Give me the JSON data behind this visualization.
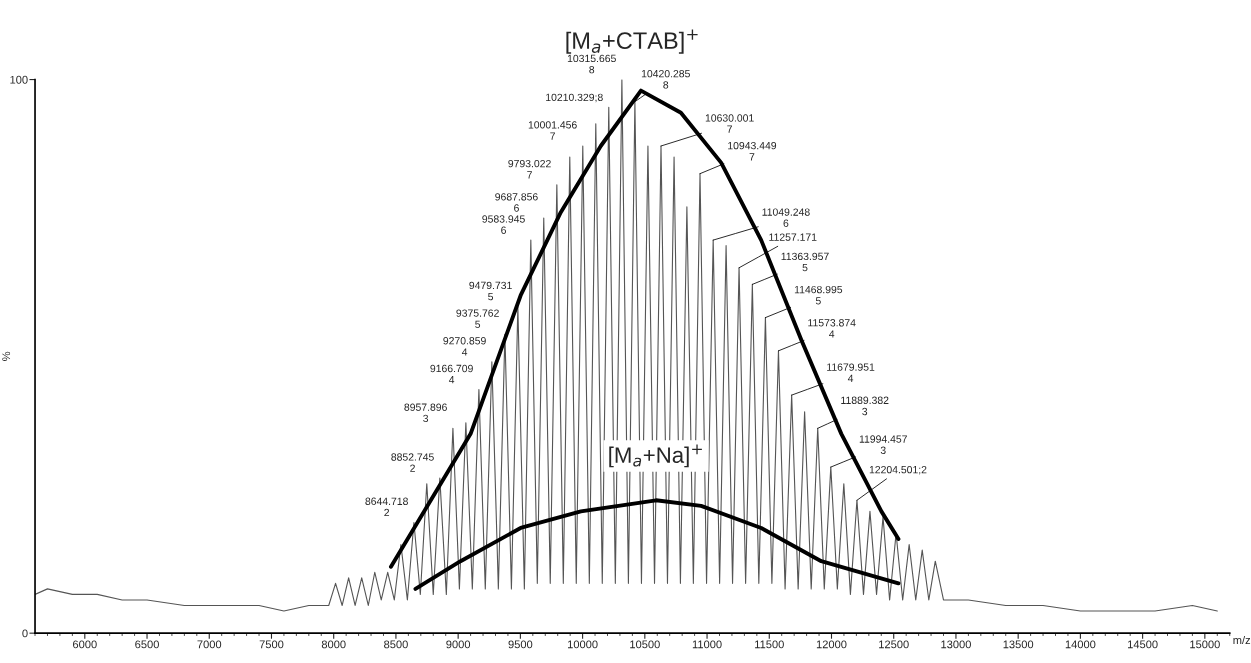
{
  "chart_data": {
    "type": "line",
    "title": "[M$_{a}$+CTAB]$^{+}$",
    "xlabel": "m/z",
    "ylabel": "%",
    "xlim": [
      5600,
      15200
    ],
    "xticks": [
      6000,
      6500,
      7000,
      7500,
      8000,
      8500,
      9000,
      9500,
      10000,
      10500,
      11000,
      11500,
      12000,
      12500,
      13000,
      13500,
      14000,
      14500,
      15000
    ],
    "ylim": [
      0,
      100
    ],
    "yticks": [
      0,
      100
    ],
    "grid": false,
    "marker": "none",
    "line_style": "solid",
    "series": [
      {
        "color": "#555555",
        "x": [
          5600,
          5700,
          5900,
          6100,
          6300,
          6500,
          6800,
          7100,
          7400,
          7600,
          7800,
          7960,
          8015,
          8068,
          8120,
          8172,
          8225,
          8278,
          8330,
          8382,
          8434,
          8487,
          8540,
          8592,
          8644.718,
          8696,
          8748,
          8800,
          8852.745,
          8905,
          8957.896,
          9010,
          9062,
          9114,
          9166.709,
          9218,
          9270.859,
          9323,
          9375.762,
          9428,
          9479.731,
          9532,
          9583.945,
          9636,
          9687.856,
          9740,
          9793.022,
          9845,
          9897,
          9949,
          10001.456,
          10054,
          10106,
          10158,
          10210.329,
          10263,
          10315.665,
          10368,
          10420.285,
          10473,
          10525,
          10578,
          10630.001,
          10682,
          10735,
          10786,
          10838,
          10890,
          10943.449,
          10996,
          11049.248,
          11101,
          11153,
          11205,
          11257.171,
          11310,
          11363.957,
          11416,
          11468.995,
          11521,
          11573.874,
          11627,
          11679.951,
          11732,
          11784,
          11837,
          11889.382,
          11942,
          11994.457,
          12047,
          12099,
          12152,
          12204.501,
          12257,
          12309,
          12362,
          12414,
          12467,
          12519,
          12572,
          12624,
          12677,
          12729,
          12782,
          12834,
          12900,
          13100,
          13400,
          13700,
          14000,
          14300,
          14600,
          14900,
          15100
        ],
        "values": [
          7,
          8,
          7,
          7,
          6,
          6,
          5,
          5,
          5,
          4,
          5,
          5,
          9,
          5,
          10,
          5,
          10,
          5,
          11,
          6,
          11,
          6,
          16,
          6,
          20,
          7,
          27,
          7,
          28,
          7,
          37,
          8,
          38,
          8,
          44,
          8,
          49,
          8,
          54,
          8,
          59,
          8,
          71,
          9,
          75,
          9,
          81,
          9,
          86,
          9,
          88,
          9,
          92,
          9,
          95,
          9,
          100,
          9,
          96,
          9,
          88,
          9,
          88,
          9,
          86,
          9,
          77,
          9,
          83,
          9,
          71,
          9,
          70,
          9,
          66,
          9,
          63,
          9,
          57,
          9,
          51,
          8,
          43,
          8,
          40,
          8,
          37,
          8,
          30,
          8,
          27,
          7,
          24,
          7,
          22,
          7,
          21,
          6,
          18,
          6,
          16,
          6,
          15,
          6,
          13,
          6,
          6,
          5,
          5,
          4,
          4,
          4,
          5,
          4
        ]
      },
      {
        "color": "#000000",
        "x": [
          8460,
          9100,
          9502,
          9824,
          10146,
          10469,
          10790,
          11113,
          11435,
          11757,
          12079,
          12401,
          12538
        ],
        "values": [
          12,
          36,
          61,
          76,
          88,
          98,
          94,
          85,
          71,
          53,
          36,
          22,
          17
        ]
      },
      {
        "color": "#000000",
        "x": [
          8657,
          9019,
          9502,
          9986,
          10590,
          10952,
          11435,
          11918,
          12538
        ],
        "values": [
          8,
          13,
          19,
          22,
          24,
          23,
          19,
          13,
          9
        ]
      }
    ],
    "annotations": [
      {
        "text": "[M$_{a}$+Na]$^{+}$",
        "x": 10590,
        "y": 32
      },
      {
        "text": "8644.718\n2",
        "x": 8644.718,
        "y": 20
      },
      {
        "text": "8852.745\n2",
        "x": 8852.745,
        "y": 28
      },
      {
        "text": "8957.896\n3",
        "x": 8957.896,
        "y": 37
      },
      {
        "text": "9166.709\n4",
        "x": 9166.709,
        "y": 44
      },
      {
        "text": "9270.859\n4",
        "x": 9270.859,
        "y": 49
      },
      {
        "text": "9375.762\n5",
        "x": 9375.762,
        "y": 54
      },
      {
        "text": "9479.731\n5",
        "x": 9479.731,
        "y": 59
      },
      {
        "text": "9583.945\n6",
        "x": 9583.945,
        "y": 71
      },
      {
        "text": "9687.856\n6",
        "x": 9687.856,
        "y": 75
      },
      {
        "text": "9793.022\n7",
        "x": 9793.022,
        "y": 81
      },
      {
        "text": "10001.456\n7",
        "x": 10001.456,
        "y": 88
      },
      {
        "text": "10210.329;8",
        "x": 10210.329,
        "y": 95
      },
      {
        "text": "10315.665\n8",
        "x": 10315.665,
        "y": 100
      },
      {
        "text": "10420.285\n8",
        "x": 10420.285,
        "y": 96
      },
      {
        "text": "10630.001\n7",
        "x": 10630.001,
        "y": 88
      },
      {
        "text": "10943.449\n7",
        "x": 10943.449,
        "y": 83
      },
      {
        "text": "11049.248\n6",
        "x": 11049.248,
        "y": 71
      },
      {
        "text": "11257.171",
        "x": 11257.171,
        "y": 66
      },
      {
        "text": "11363.957\n5",
        "x": 11363.957,
        "y": 63
      },
      {
        "text": "11468.995\n5",
        "x": 11468.995,
        "y": 57
      },
      {
        "text": "11573.874\n4",
        "x": 11573.874,
        "y": 51
      },
      {
        "text": "11679.951\n4",
        "x": 11679.951,
        "y": 43
      },
      {
        "text": "11889.382\n3",
        "x": 11889.382,
        "y": 37
      },
      {
        "text": "11994.457\n3",
        "x": 11994.457,
        "y": 30
      },
      {
        "text": "12204.501;2",
        "x": 12204.501,
        "y": 24
      }
    ]
  }
}
